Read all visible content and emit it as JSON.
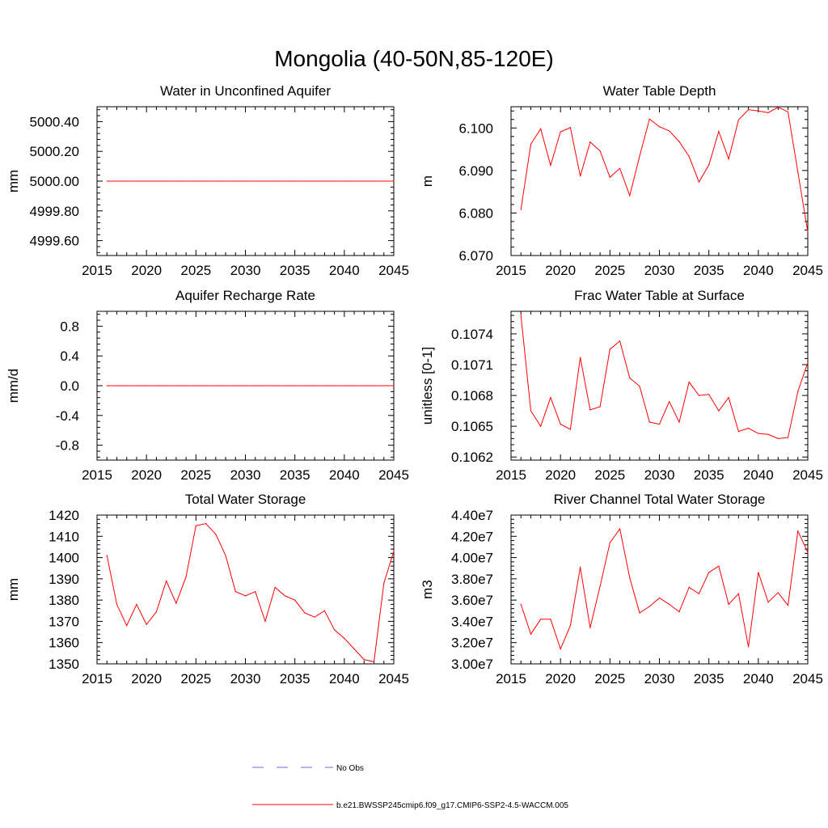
{
  "figure_title": "Mongolia (40-50N,85-120E)",
  "colors": {
    "model": "#ff0000",
    "obs": "#6b6bd6",
    "axis": "#000000"
  },
  "legend": {
    "obs_label": "No Obs",
    "model_label": "b.e21.BWSSP245cmip6.f09_g17.CMIP6-SSP2-4.5-WACCM.005"
  },
  "chart_data": [
    {
      "id": "unconfined-aquifer",
      "type": "line",
      "title": "Water in Unconfined Aquifer",
      "ylabel": "mm",
      "xlim": [
        2015,
        2045
      ],
      "ylim": [
        4999.5,
        5000.5
      ],
      "xticks": [
        2015,
        2020,
        2025,
        2030,
        2035,
        2040,
        2045
      ],
      "yticks": [
        4999.6,
        4999.8,
        5000.0,
        5000.2,
        5000.4
      ],
      "ytick_labels": [
        "4999.60",
        "4999.80",
        "5000.00",
        "5000.20",
        "5000.40"
      ],
      "x": [
        2016,
        2017,
        2018,
        2019,
        2020,
        2021,
        2022,
        2023,
        2024,
        2025,
        2026,
        2027,
        2028,
        2029,
        2030,
        2031,
        2032,
        2033,
        2034,
        2035,
        2036,
        2037,
        2038,
        2039,
        2040,
        2041,
        2042,
        2043,
        2044,
        2045
      ],
      "series": [
        {
          "name": "b.e21.BWSSP245cmip6.f09_g17.CMIP6-SSP2-4.5-WACCM.005",
          "values": [
            5000,
            5000,
            5000,
            5000,
            5000,
            5000,
            5000,
            5000,
            5000,
            5000,
            5000,
            5000,
            5000,
            5000,
            5000,
            5000,
            5000,
            5000,
            5000,
            5000,
            5000,
            5000,
            5000,
            5000,
            5000,
            5000,
            5000,
            5000,
            5000,
            5000
          ]
        }
      ]
    },
    {
      "id": "water-table-depth",
      "type": "line",
      "title": "Water Table Depth",
      "ylabel": "m",
      "xlim": [
        2015,
        2045
      ],
      "ylim": [
        6.07,
        6.105
      ],
      "xticks": [
        2015,
        2020,
        2025,
        2030,
        2035,
        2040,
        2045
      ],
      "yticks": [
        6.07,
        6.08,
        6.09,
        6.1
      ],
      "ytick_labels": [
        "6.070",
        "6.080",
        "6.090",
        "6.100"
      ],
      "x": [
        2016,
        2017,
        2018,
        2019,
        2020,
        2021,
        2022,
        2023,
        2024,
        2025,
        2026,
        2027,
        2028,
        2029,
        2030,
        2031,
        2032,
        2033,
        2034,
        2035,
        2036,
        2037,
        2038,
        2039,
        2040,
        2041,
        2042,
        2043,
        2044,
        2045
      ],
      "series": [
        {
          "name": "b.e21.BWSSP245cmip6.f09_g17.CMIP6-SSP2-4.5-WACCM.005",
          "values": [
            6.0808,
            6.0962,
            6.0998,
            6.0912,
            6.0991,
            6.1001,
            6.0887,
            6.0967,
            6.0946,
            6.0884,
            6.0905,
            6.0841,
            6.0934,
            6.1021,
            6.1003,
            6.0993,
            6.0968,
            6.0933,
            6.0873,
            6.0913,
            6.0992,
            6.0927,
            6.1019,
            6.1043,
            6.104,
            6.1036,
            6.1049,
            6.1038,
            6.0896,
            6.0755
          ]
        }
      ]
    },
    {
      "id": "aquifer-recharge",
      "type": "line",
      "title": "Aquifer Recharge Rate",
      "ylabel": "mm/d",
      "xlim": [
        2015,
        2045
      ],
      "ylim": [
        -1.0,
        1.0
      ],
      "xticks": [
        2015,
        2020,
        2025,
        2030,
        2035,
        2040,
        2045
      ],
      "yticks": [
        -0.8,
        -0.4,
        0.0,
        0.4,
        0.8
      ],
      "ytick_labels": [
        "-0.8",
        "-0.4",
        "0.0",
        "0.4",
        "0.8"
      ],
      "x": [
        2016,
        2017,
        2018,
        2019,
        2020,
        2021,
        2022,
        2023,
        2024,
        2025,
        2026,
        2027,
        2028,
        2029,
        2030,
        2031,
        2032,
        2033,
        2034,
        2035,
        2036,
        2037,
        2038,
        2039,
        2040,
        2041,
        2042,
        2043,
        2044,
        2045
      ],
      "series": [
        {
          "name": "b.e21.BWSSP245cmip6.f09_g17.CMIP6-SSP2-4.5-WACCM.005",
          "values": [
            0,
            0,
            0,
            0,
            0,
            0,
            0,
            0,
            0,
            0,
            0,
            0,
            0,
            0,
            0,
            0,
            0,
            0,
            0,
            0,
            0,
            0,
            0,
            0,
            0,
            0,
            0,
            0,
            0,
            0
          ]
        }
      ]
    },
    {
      "id": "frac-water-table",
      "type": "line",
      "title": "Frac Water Table at Surface",
      "ylabel": "unitless [0-1]",
      "xlim": [
        2015,
        2045
      ],
      "ylim": [
        0.10617,
        0.10762
      ],
      "xticks": [
        2015,
        2020,
        2025,
        2030,
        2035,
        2040,
        2045
      ],
      "yticks": [
        0.1062,
        0.1065,
        0.1068,
        0.1071,
        0.1074
      ],
      "ytick_labels": [
        "0.1062",
        "0.1065",
        "0.1068",
        "0.1071",
        "0.1074"
      ],
      "x": [
        2016,
        2017,
        2018,
        2019,
        2020,
        2021,
        2022,
        2023,
        2024,
        2025,
        2026,
        2027,
        2028,
        2029,
        2030,
        2031,
        2032,
        2033,
        2034,
        2035,
        2036,
        2037,
        2038,
        2039,
        2040,
        2041,
        2042,
        2043,
        2044,
        2045
      ],
      "series": [
        {
          "name": "b.e21.BWSSP245cmip6.f09_g17.CMIP6-SSP2-4.5-WACCM.005",
          "values": [
            0.10758,
            0.10665,
            0.1065,
            0.10678,
            0.10652,
            0.10647,
            0.10717,
            0.10666,
            0.10669,
            0.10725,
            0.10733,
            0.10697,
            0.10689,
            0.10654,
            0.10652,
            0.10674,
            0.10654,
            0.10693,
            0.1068,
            0.10681,
            0.10665,
            0.10678,
            0.10645,
            0.10648,
            0.10643,
            0.10642,
            0.10638,
            0.10639,
            0.10684,
            0.10712
          ]
        }
      ]
    },
    {
      "id": "total-water-storage",
      "type": "line",
      "title": "Total Water Storage",
      "ylabel": "mm",
      "xlim": [
        2015,
        2045
      ],
      "ylim": [
        1350,
        1420
      ],
      "xticks": [
        2015,
        2020,
        2025,
        2030,
        2035,
        2040,
        2045
      ],
      "yticks": [
        1350,
        1360,
        1370,
        1380,
        1390,
        1400,
        1410,
        1420
      ],
      "ytick_labels": [
        "1350",
        "1360",
        "1370",
        "1380",
        "1390",
        "1400",
        "1410",
        "1420"
      ],
      "x": [
        2016,
        2017,
        2018,
        2019,
        2020,
        2021,
        2022,
        2023,
        2024,
        2025,
        2026,
        2027,
        2028,
        2029,
        2030,
        2031,
        2032,
        2033,
        2034,
        2035,
        2036,
        2037,
        2038,
        2039,
        2040,
        2041,
        2042,
        2043,
        2044,
        2045
      ],
      "series": [
        {
          "name": "b.e21.BWSSP245cmip6.f09_g17.CMIP6-SSP2-4.5-WACCM.005",
          "values": [
            1401,
            1378,
            1368,
            1378,
            1368.5,
            1374.5,
            1389,
            1378.5,
            1391,
            1415,
            1416,
            1411,
            1401,
            1384,
            1382,
            1384,
            1370,
            1386,
            1382,
            1380,
            1374,
            1372,
            1375,
            1366,
            1362,
            1357,
            1352,
            1351,
            1388,
            1403
          ]
        }
      ]
    },
    {
      "id": "river-channel-storage",
      "type": "line",
      "title": "River Channel Total Water Storage",
      "ylabel": "m3",
      "xlim": [
        2015,
        2045
      ],
      "ylim": [
        30000000,
        44000000
      ],
      "xticks": [
        2015,
        2020,
        2025,
        2030,
        2035,
        2040,
        2045
      ],
      "yticks": [
        30000000,
        32000000,
        34000000,
        36000000,
        38000000,
        40000000,
        42000000,
        44000000
      ],
      "ytick_labels": [
        "3.00e7",
        "3.20e7",
        "3.40e7",
        "3.60e7",
        "3.80e7",
        "4.00e7",
        "4.20e7",
        "4.40e7"
      ],
      "x": [
        2016,
        2017,
        2018,
        2019,
        2020,
        2021,
        2022,
        2023,
        2024,
        2025,
        2026,
        2027,
        2028,
        2029,
        2030,
        2031,
        2032,
        2033,
        2034,
        2035,
        2036,
        2037,
        2038,
        2039,
        2040,
        2041,
        2042,
        2043,
        2044,
        2045
      ],
      "series": [
        {
          "name": "b.e21.BWSSP245cmip6.f09_g17.CMIP6-SSP2-4.5-WACCM.005",
          "values": [
            35600000,
            32800000,
            34200000,
            34200000,
            31400000,
            33600000,
            39100000,
            33400000,
            37300000,
            41400000,
            42700000,
            38100000,
            34800000,
            35400000,
            36200000,
            35600000,
            34900000,
            37200000,
            36600000,
            38600000,
            39200000,
            35600000,
            36600000,
            31600000,
            38600000,
            35800000,
            36700000,
            35500000,
            42500000,
            40500000
          ]
        }
      ]
    }
  ]
}
